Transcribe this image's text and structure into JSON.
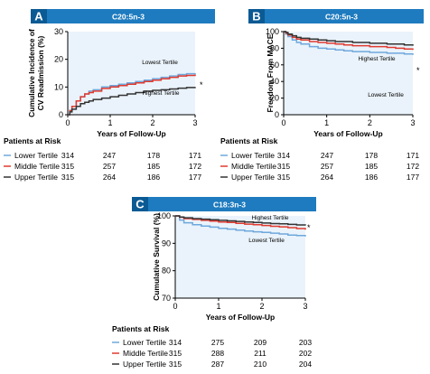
{
  "chart_data": [
    {
      "id": "A",
      "type": "line",
      "title": "C20:5n-3",
      "xlabel": "Years of Follow-Up",
      "ylabel": "Cumulative Incidence of CV Readmission (%)",
      "ylabel_lines": [
        "Cumulative Incidence of",
        "CV Readmission (%)"
      ],
      "xlim": [
        0,
        3
      ],
      "ylim": [
        0,
        30
      ],
      "xticks": [
        "0",
        "1",
        "2",
        "3"
      ],
      "yticks": [
        "0",
        "10",
        "20",
        "30"
      ],
      "significance_marker": "*",
      "series": [
        {
          "name": "Lower Tertile",
          "color": "#6fa8dc",
          "label_text": "Lowest Tertile",
          "x": [
            0,
            0.05,
            0.1,
            0.2,
            0.3,
            0.4,
            0.5,
            0.6,
            0.8,
            1.0,
            1.2,
            1.4,
            1.6,
            1.8,
            2.0,
            2.2,
            2.4,
            2.6,
            2.8,
            3.0
          ],
          "y": [
            0,
            1.5,
            3,
            5,
            6.5,
            7.5,
            8.5,
            9,
            10,
            10.5,
            11,
            11.5,
            12,
            12.5,
            13,
            13.5,
            14,
            14.5,
            14.8,
            15
          ]
        },
        {
          "name": "Middle Tertile",
          "color": "#e03a2f",
          "x": [
            0,
            0.05,
            0.1,
            0.2,
            0.3,
            0.4,
            0.5,
            0.6,
            0.8,
            1.0,
            1.2,
            1.4,
            1.6,
            1.8,
            2.0,
            2.2,
            2.4,
            2.6,
            2.8,
            3.0
          ],
          "y": [
            0,
            1.5,
            3,
            5,
            6.5,
            7.5,
            8,
            8.5,
            9.5,
            10,
            10.5,
            11,
            11.5,
            12,
            12.5,
            13,
            13.5,
            14,
            14.2,
            14.5
          ]
        },
        {
          "name": "Upper Tertile",
          "color": "#333333",
          "label_text": "Highest Tertile",
          "x": [
            0,
            0.05,
            0.1,
            0.2,
            0.3,
            0.4,
            0.5,
            0.6,
            0.8,
            1.0,
            1.2,
            1.4,
            1.6,
            1.8,
            2.0,
            2.2,
            2.4,
            2.6,
            2.8,
            3.0
          ],
          "y": [
            0,
            1,
            2,
            3,
            4,
            4.5,
            5,
            5.5,
            6,
            6.5,
            7,
            7.5,
            8,
            8.5,
            8.8,
            9,
            9.3,
            9.6,
            9.8,
            10
          ]
        }
      ],
      "risk": {
        "title": "Patients at Risk",
        "rows": [
          {
            "label": "Lower Tertile",
            "values": [
              "314",
              "247",
              "178",
              "171"
            ]
          },
          {
            "label": "Middle Tertile",
            "values": [
              "315",
              "257",
              "185",
              "172"
            ]
          },
          {
            "label": "Upper Tertile",
            "values": [
              "315",
              "264",
              "186",
              "177"
            ]
          }
        ]
      }
    },
    {
      "id": "B",
      "type": "line",
      "title": "C20:5n-3",
      "xlabel": "Years of Follow-Up",
      "ylabel": "Freedom From MACE",
      "ylabel_lines": [
        "Freedom From MACE"
      ],
      "xlim": [
        0,
        3
      ],
      "ylim": [
        0,
        100
      ],
      "xticks": [
        "0",
        "1",
        "2",
        "3"
      ],
      "yticks": [
        "0",
        "20",
        "40",
        "60",
        "80",
        "100"
      ],
      "significance_marker": "*",
      "series": [
        {
          "name": "Lower Tertile",
          "color": "#6fa8dc",
          "label_text": "Lowest Tertile",
          "x": [
            0,
            0.05,
            0.1,
            0.2,
            0.3,
            0.4,
            0.6,
            0.8,
            1.0,
            1.2,
            1.4,
            1.6,
            1.8,
            2.0,
            2.2,
            2.4,
            2.6,
            2.8,
            3.0
          ],
          "y": [
            100,
            97,
            94,
            90,
            87,
            85,
            82,
            80,
            79,
            78,
            77,
            76,
            76,
            75,
            75,
            74,
            74,
            73,
            72
          ]
        },
        {
          "name": "Middle Tertile",
          "color": "#e03a2f",
          "x": [
            0,
            0.05,
            0.1,
            0.2,
            0.3,
            0.4,
            0.6,
            0.8,
            1.0,
            1.2,
            1.4,
            1.6,
            1.8,
            2.0,
            2.2,
            2.4,
            2.6,
            2.8,
            3.0
          ],
          "y": [
            100,
            98,
            96,
            93,
            91,
            90,
            88,
            87,
            86,
            85,
            84,
            83,
            83,
            82,
            82,
            81,
            80,
            79,
            78
          ]
        },
        {
          "name": "Upper Tertile",
          "color": "#333333",
          "label_text": "Highest Tertile",
          "x": [
            0,
            0.05,
            0.1,
            0.2,
            0.3,
            0.4,
            0.6,
            0.8,
            1.0,
            1.2,
            1.4,
            1.6,
            1.8,
            2.0,
            2.2,
            2.4,
            2.6,
            2.8,
            3.0
          ],
          "y": [
            100,
            99,
            97,
            95,
            93,
            92,
            91,
            90,
            89,
            88,
            88,
            87,
            87,
            86,
            86,
            85,
            85,
            84,
            83
          ]
        }
      ],
      "risk": {
        "title": "Patients at Risk",
        "rows": [
          {
            "label": "Lower Tertile",
            "values": [
              "314",
              "247",
              "178",
              "171"
            ]
          },
          {
            "label": "Middle Tertile",
            "values": [
              "315",
              "257",
              "185",
              "172"
            ]
          },
          {
            "label": "Upper Tertile",
            "values": [
              "315",
              "264",
              "186",
              "177"
            ]
          }
        ]
      }
    },
    {
      "id": "C",
      "type": "line",
      "title": "C18:3n-3",
      "xlabel": "Years of Follow-Up",
      "ylabel": "Cumulative Survival (%)",
      "ylabel_lines": [
        "Cumulative Survival (%)"
      ],
      "xlim": [
        0,
        3
      ],
      "ylim": [
        70,
        100
      ],
      "xticks": [
        "0",
        "1",
        "2",
        "3"
      ],
      "yticks": [
        "70",
        "80",
        "90",
        "100"
      ],
      "significance_marker": "*",
      "series": [
        {
          "name": "Lower Tertile",
          "color": "#6fa8dc",
          "label_text": "Lowest Tertile",
          "x": [
            0,
            0.1,
            0.2,
            0.4,
            0.6,
            0.8,
            1.0,
            1.2,
            1.4,
            1.6,
            1.8,
            2.0,
            2.2,
            2.4,
            2.6,
            2.8,
            3.0
          ],
          "y": [
            100,
            98.5,
            97.5,
            96.8,
            96.3,
            95.9,
            95.5,
            95.2,
            94.8,
            94.5,
            94.2,
            94,
            93.7,
            93.4,
            93,
            92.8,
            92.5
          ]
        },
        {
          "name": "Middle Tertile",
          "color": "#e03a2f",
          "x": [
            0,
            0.1,
            0.2,
            0.4,
            0.6,
            0.8,
            1.0,
            1.2,
            1.4,
            1.6,
            1.8,
            2.0,
            2.2,
            2.4,
            2.6,
            2.8,
            3.0
          ],
          "y": [
            100,
            99.5,
            99,
            98.7,
            98.4,
            98.1,
            97.8,
            97.6,
            97.3,
            97,
            96.8,
            96.5,
            96.2,
            96,
            95.7,
            95.4,
            95
          ]
        },
        {
          "name": "Upper Tertile",
          "color": "#333333",
          "label_text": "Highest Tertile",
          "x": [
            0,
            0.1,
            0.2,
            0.4,
            0.6,
            0.8,
            1.0,
            1.2,
            1.4,
            1.6,
            1.8,
            2.0,
            2.2,
            2.4,
            2.6,
            2.8,
            3.0
          ],
          "y": [
            100,
            99.6,
            99.3,
            99,
            98.8,
            98.6,
            98.4,
            98.2,
            98,
            97.8,
            97.6,
            97.4,
            97.2,
            97.1,
            96.9,
            96.7,
            96.5
          ]
        }
      ],
      "risk": {
        "title": "Patients at Risk",
        "rows": [
          {
            "label": "Lower Tertile",
            "values": [
              "314",
              "275",
              "209",
              "203"
            ]
          },
          {
            "label": "Middle Tertile",
            "values": [
              "315",
              "288",
              "211",
              "202"
            ]
          },
          {
            "label": "Upper Tertile",
            "values": [
              "315",
              "287",
              "210",
              "204"
            ]
          }
        ]
      }
    }
  ]
}
